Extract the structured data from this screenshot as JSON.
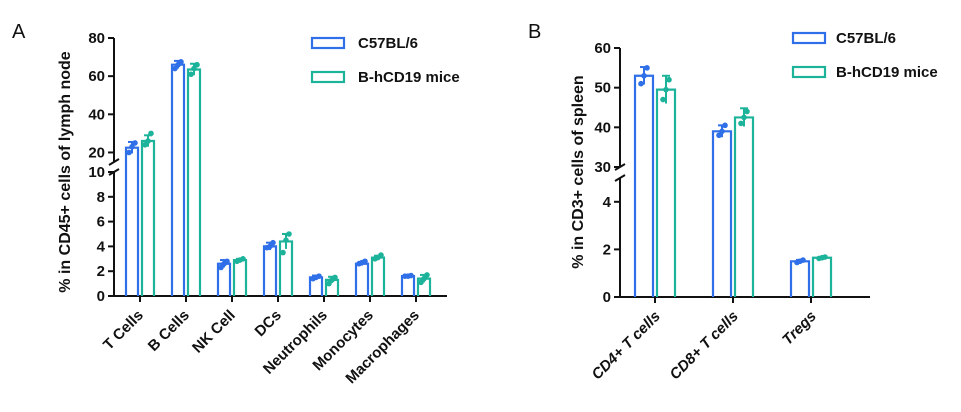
{
  "colors": {
    "series1": "#2f6fe8",
    "series2": "#1db39a",
    "axis": "#111111"
  },
  "chart_data": [
    {
      "type": "bar",
      "panel_label": "A",
      "ylabel": "% in CD45+ cells of lymph node",
      "categories": [
        "T Cells",
        "B Cells",
        "NK Cell",
        "DCs",
        "Neutrophils",
        "Monocytes",
        "Macrophages"
      ],
      "y_axis": "broken",
      "ylim_lower": [
        0,
        10
      ],
      "ylim_upper": [
        15,
        80
      ],
      "yticks_lower": [
        "0",
        "2",
        "4",
        "6",
        "8",
        "10"
      ],
      "yticks_upper": [
        "20",
        "40",
        "60",
        "80"
      ],
      "legend_position": "top-right",
      "series": [
        {
          "name": "C57BL/6",
          "values": [
            22.5,
            66,
            2.6,
            4.0,
            1.5,
            2.6,
            1.6
          ],
          "errors": [
            3,
            2,
            0.3,
            0.3,
            0.15,
            0.15,
            0.08
          ],
          "points": [
            [
              20,
              23,
              25
            ],
            [
              64,
              66,
              67.5
            ],
            [
              2.3,
              2.6,
              2.8
            ],
            [
              3.9,
              4.0,
              4.3
            ],
            [
              1.4,
              1.5,
              1.6
            ],
            [
              2.6,
              2.7,
              2.8
            ],
            [
              1.6,
              1.6,
              1.65
            ]
          ]
        },
        {
          "name": "B-hCD19 mice",
          "values": [
            26,
            63.5,
            2.9,
            4.4,
            1.3,
            3.1,
            1.4
          ],
          "errors": [
            3,
            3,
            0.1,
            0.6,
            0.25,
            0.15,
            0.3
          ],
          "points": [
            [
              24,
              26,
              30
            ],
            [
              61,
              64,
              66
            ],
            [
              2.8,
              2.9,
              3.0
            ],
            [
              3.5,
              4.5,
              5.0
            ],
            [
              1.0,
              1.3,
              1.5
            ],
            [
              3.0,
              3.1,
              3.3
            ],
            [
              1.1,
              1.4,
              1.7
            ]
          ]
        }
      ]
    },
    {
      "type": "bar",
      "panel_label": "B",
      "ylabel": "% in CD3+ cells of spleen",
      "categories": [
        "CD4+ T cells",
        "CD8+ T cells",
        "Tregs"
      ],
      "y_axis": "broken",
      "ylim_lower": [
        0,
        5
      ],
      "ylim_upper": [
        30,
        60
      ],
      "yticks_lower": [
        "0",
        "2",
        "4"
      ],
      "yticks_upper": [
        "30",
        "40",
        "50",
        "60"
      ],
      "legend_position": "top-right",
      "series": [
        {
          "name": "C57BL/6",
          "values": [
            53,
            39,
            1.5
          ],
          "errors": [
            2.2,
            1.5,
            0.06
          ],
          "points": [
            [
              51,
              53,
              55
            ],
            [
              38,
              39,
              40.5
            ],
            [
              1.45,
              1.5,
              1.55
            ]
          ]
        },
        {
          "name": "B-hCD19 mice",
          "values": [
            49.5,
            42.5,
            1.65
          ],
          "errors": [
            3.5,
            2.3,
            0.03
          ],
          "points": [
            [
              47,
              49.5,
              52
            ],
            [
              41,
              42.5,
              44
            ],
            [
              1.62,
              1.65,
              1.68
            ]
          ]
        }
      ]
    }
  ]
}
